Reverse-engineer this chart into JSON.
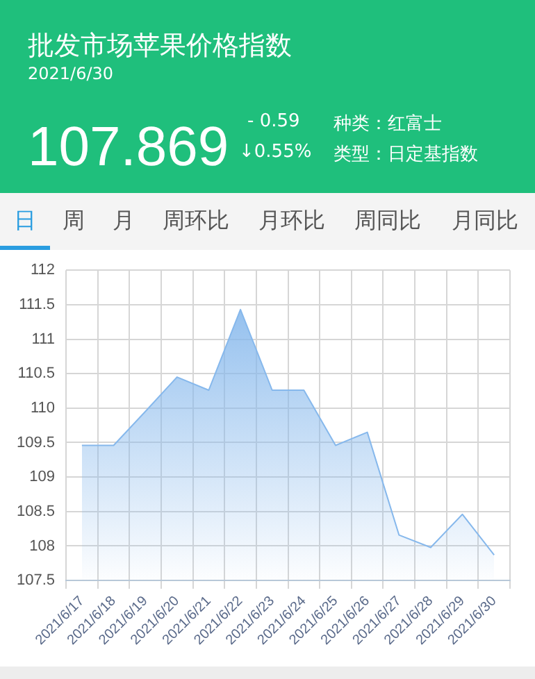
{
  "chart_data": {
    "type": "area",
    "title": "批发市场苹果价格指数",
    "subtitle": "2021/6/30",
    "annotations": [
      "107.869",
      "- 0.59",
      "↓0.55%",
      "种类：红富士",
      "类型：日定基指数",
      "日",
      "周",
      "月",
      "周环比",
      "月环比",
      "周同比",
      "月同比"
    ],
    "categories": [
      "2021/6/17",
      "2021/6/18",
      "2021/6/19",
      "2021/6/20",
      "2021/6/21",
      "2021/6/22",
      "2021/6/23",
      "2021/6/24",
      "2021/6/25",
      "2021/6/26",
      "2021/6/27",
      "2021/6/28",
      "2021/6/29",
      "2021/6/30"
    ],
    "series": [
      {
        "color": "#86b8ec",
        "values": [
          109.46,
          109.46,
          109.95,
          110.45,
          110.26,
          111.43,
          110.26,
          110.26,
          109.46,
          109.65,
          108.16,
          107.98,
          108.46,
          107.869
        ]
      }
    ],
    "ylim": [
      107.5,
      112
    ],
    "yticks": [
      107.5,
      108,
      108.5,
      109,
      109.5,
      110,
      110.5,
      111,
      111.5,
      112
    ],
    "grid": true,
    "legend": false,
    "marker": "none"
  }
}
